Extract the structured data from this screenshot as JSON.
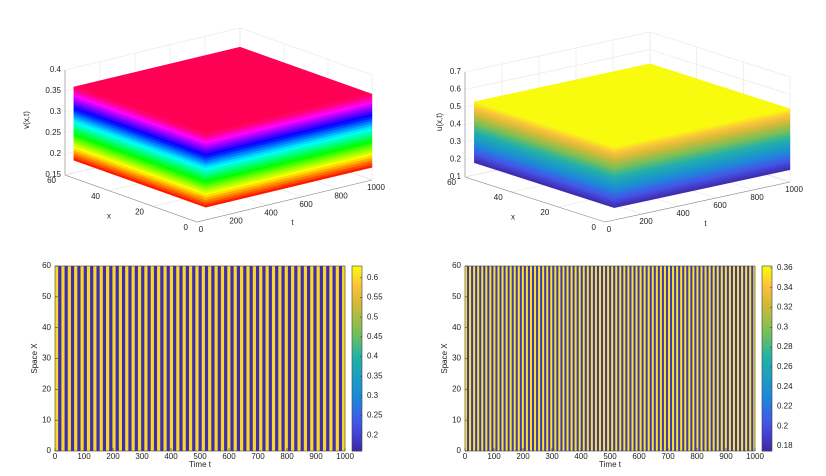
{
  "chart_data": [
    {
      "type": "surface3d",
      "zlabel": "v(x,t)",
      "xlabel": "x",
      "tlabel": "t",
      "tlim": [
        0,
        1000
      ],
      "tticks": [
        0,
        200,
        400,
        600,
        800,
        1000
      ],
      "xlim": [
        0,
        60
      ],
      "xticks": [
        0,
        20,
        40,
        60
      ],
      "zlim": [
        0.15,
        0.4
      ],
      "zticks": [
        0.15,
        0.2,
        0.25,
        0.3,
        0.35,
        0.4
      ],
      "values": [
        0.18,
        0.355
      ],
      "colormap": "hsv",
      "grid": true
    },
    {
      "type": "surface3d",
      "zlabel": "u(x,t)",
      "xlabel": "x",
      "tlabel": "t",
      "tlim": [
        0,
        1000
      ],
      "tticks": [
        0,
        200,
        400,
        600,
        800,
        1000
      ],
      "xlim": [
        0,
        60
      ],
      "xticks": [
        0,
        20,
        40,
        60
      ],
      "zlim": [
        0.1,
        0.7
      ],
      "zticks": [
        0.1,
        0.2,
        0.3,
        0.4,
        0.5,
        0.6,
        0.7
      ],
      "values": [
        0.17,
        0.52
      ],
      "colormap": "parula",
      "grid": true
    },
    {
      "type": "heatmap",
      "xlabel": "Time t",
      "ylabel": "Space X",
      "xlim": [
        0,
        1000
      ],
      "xticks": [
        0,
        100,
        200,
        300,
        400,
        500,
        600,
        700,
        800,
        900,
        1000
      ],
      "ylim": [
        0,
        60
      ],
      "yticks": [
        0,
        10,
        20,
        30,
        40,
        50,
        60
      ],
      "period": 22,
      "values": [
        0.6,
        0.17
      ],
      "clim": [
        0.16,
        0.63
      ],
      "cticks": [
        0.2,
        0.25,
        0.3,
        0.35,
        0.4,
        0.45,
        0.5,
        0.55,
        0.6
      ],
      "colormap": "parula"
    },
    {
      "type": "heatmap",
      "xlabel": "Time t",
      "ylabel": "Space X",
      "xlim": [
        0,
        1000
      ],
      "xticks": [
        0,
        100,
        200,
        300,
        400,
        500,
        600,
        700,
        800,
        900,
        1000
      ],
      "ylim": [
        0,
        60
      ],
      "yticks": [
        0,
        10,
        20,
        30,
        40,
        50,
        60
      ],
      "period": 14,
      "values": [
        0.355,
        0.185
      ],
      "clim": [
        0.175,
        0.362
      ],
      "cticks": [
        0.18,
        0.2,
        0.22,
        0.24,
        0.26,
        0.28,
        0.3,
        0.32,
        0.34,
        0.36
      ],
      "colormap": "parula"
    }
  ]
}
